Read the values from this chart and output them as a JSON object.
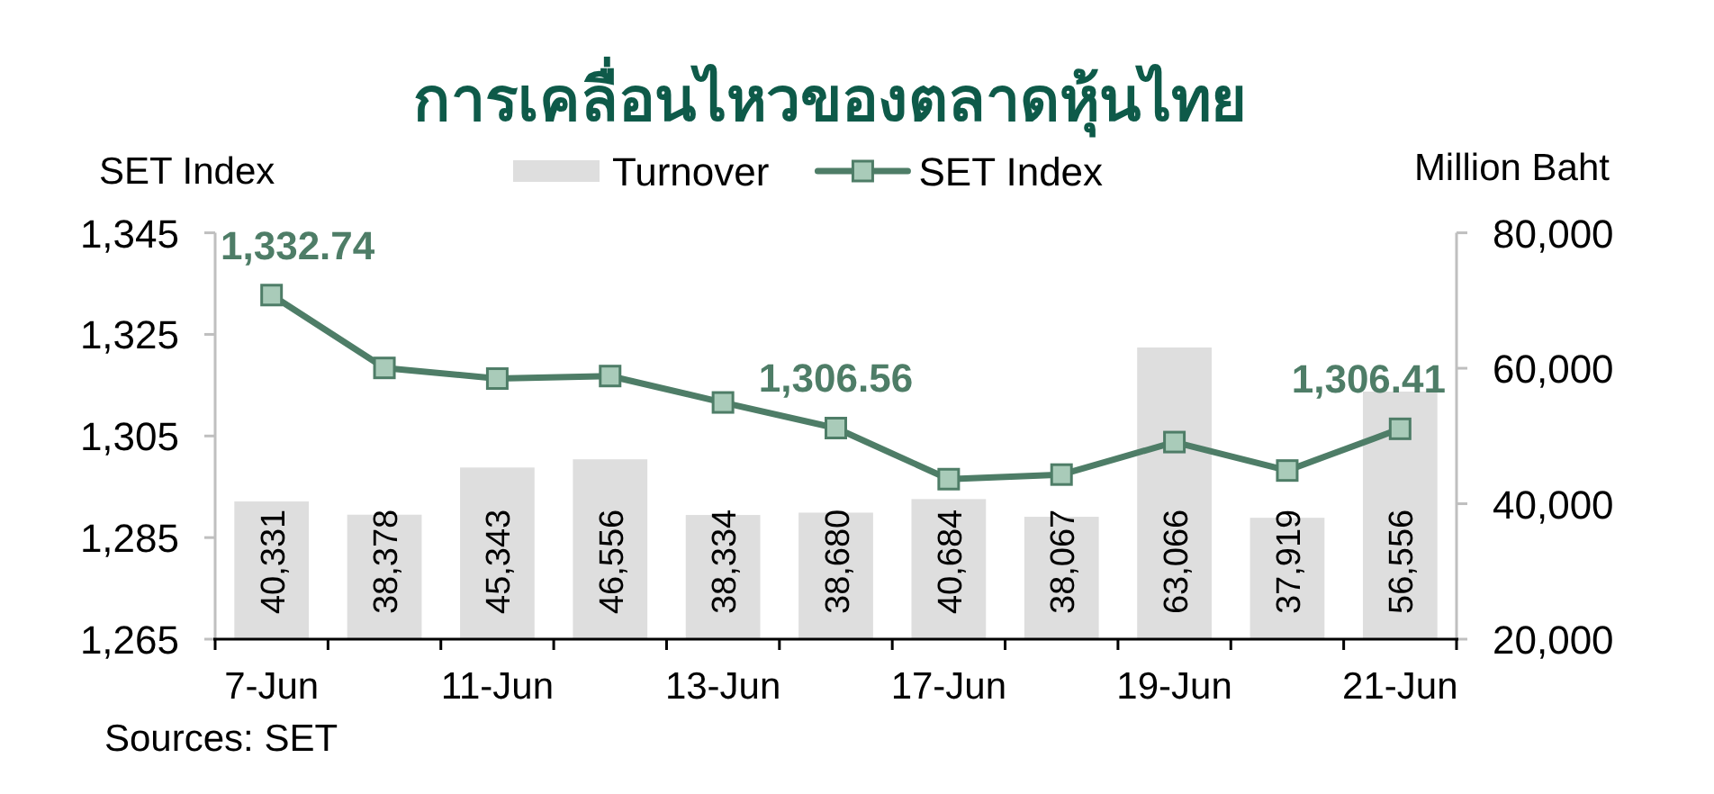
{
  "chart_data": {
    "type": "bar",
    "title": "การเคลื่อนไหวของตลาดหุ้นไทย",
    "ylabel": "SET Index",
    "y2label": "Million Baht",
    "categories": [
      "7-Jun",
      null,
      "11-Jun",
      null,
      "13-Jun",
      null,
      "17-Jun",
      null,
      "19-Jun",
      null,
      "21-Jun"
    ],
    "series": [
      {
        "name": "Turnover",
        "axis": "y2",
        "color": "#dedede",
        "values": [
          40331,
          38378,
          45343,
          46556,
          38334,
          38680,
          40684,
          38067,
          63066,
          37919,
          56556
        ],
        "value_labels": [
          "40,331",
          "38,378",
          "45,343",
          "46,556",
          "38,334",
          "38,680",
          "40,684",
          "38,067",
          "63,066",
          "37,919",
          "56,556"
        ]
      },
      {
        "name": "SET Index",
        "type": "line",
        "axis": "y",
        "color": "#4e7d67",
        "marker": "square",
        "values": [
          1332.74,
          1318.4,
          1316.3,
          1316.8,
          1311.6,
          1306.56,
          1296.5,
          1297.4,
          1303.8,
          1298.2,
          1306.41
        ],
        "value_labels": [
          "1,332.74",
          null,
          null,
          null,
          null,
          "1,306.56",
          null,
          null,
          null,
          null,
          "1,306.41"
        ]
      }
    ],
    "ylim": [
      1265,
      1345
    ],
    "yticks": [
      {
        "value": 1265,
        "label": "1,265"
      },
      {
        "value": 1285,
        "label": "1,285"
      },
      {
        "value": 1305,
        "label": "1,305"
      },
      {
        "value": 1325,
        "label": "1,325"
      },
      {
        "value": 1345,
        "label": "1,345"
      }
    ],
    "y2lim": [
      20000,
      80000
    ],
    "y2ticks": [
      {
        "value": 20000,
        "label": "20,000"
      },
      {
        "value": 40000,
        "label": "40,000"
      },
      {
        "value": 60000,
        "label": "60,000"
      },
      {
        "value": 80000,
        "label": "80,000"
      }
    ],
    "legend": "top",
    "annotations": [
      "Sources: SET"
    ]
  }
}
